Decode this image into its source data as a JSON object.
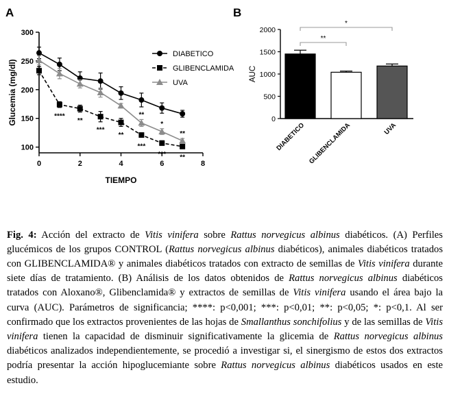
{
  "figure": {
    "panel_a_letter": "A",
    "panel_b_letter": "B"
  },
  "chart_data": [
    {
      "type": "line",
      "panel": "A",
      "xlabel": "TIEMPO",
      "ylabel": "Glucemia (mg/dl)",
      "xlim": [
        0,
        8
      ],
      "ylim": [
        90,
        300
      ],
      "xticks": [
        0,
        2,
        4,
        6,
        8
      ],
      "yticks": [
        100,
        150,
        200,
        250,
        300
      ],
      "legend_position": "top-right",
      "series": [
        {
          "name": "DIABETICO",
          "marker": "circle",
          "line_style": "solid",
          "color": "#000000",
          "x": [
            0,
            1,
            2,
            3,
            4,
            5,
            6,
            7
          ],
          "y": [
            264,
            244,
            220,
            215,
            194,
            182,
            168,
            158
          ],
          "err": [
            10,
            11,
            11,
            14,
            11,
            12,
            9,
            6
          ],
          "annotations": [
            "",
            "",
            "",
            "",
            "",
            "",
            "",
            ""
          ]
        },
        {
          "name": "GLIBENCLAMIDA",
          "marker": "square",
          "line_style": "dashed",
          "color": "#000000",
          "x": [
            0,
            1,
            2,
            3,
            4,
            5,
            6,
            7
          ],
          "y": [
            233,
            174,
            167,
            153,
            143,
            121,
            107,
            101
          ],
          "err": [
            7,
            5,
            6,
            9,
            7,
            4,
            4,
            3
          ],
          "annotations": [
            "",
            "****",
            "**",
            "***",
            "**",
            "***",
            "***",
            "**"
          ]
        },
        {
          "name": "UVA",
          "marker": "triangle",
          "line_style": "solid",
          "color": "#8c8c8c",
          "x": [
            0,
            1,
            2,
            3,
            4,
            5,
            6,
            7
          ],
          "y": [
            251,
            228,
            210,
            195,
            172,
            142,
            127,
            111
          ],
          "err": [
            8,
            9,
            7,
            8,
            4,
            6,
            5,
            4
          ],
          "annotations": [
            "",
            "",
            "",
            "",
            "",
            "**",
            "*",
            "**"
          ]
        }
      ]
    },
    {
      "type": "bar",
      "panel": "B",
      "ylabel": "AUC",
      "ylim": [
        0,
        2000
      ],
      "yticks": [
        0,
        500,
        1000,
        1500,
        2000
      ],
      "categories": [
        "DIABETICO",
        "GLIBENCLAMIDA",
        "UVA"
      ],
      "values": [
        1450,
        1040,
        1180
      ],
      "errors": [
        85,
        25,
        45
      ],
      "fills": [
        "#000000",
        "#ffffff",
        "#555555"
      ],
      "significance": [
        {
          "from": 0,
          "to": 1,
          "label": "**"
        },
        {
          "from": 0,
          "to": 2,
          "label": "*"
        }
      ]
    }
  ],
  "caption": {
    "parts": [
      {
        "t": "Fig. 4:",
        "s": "b"
      },
      {
        "t": " Acción del extracto de "
      },
      {
        "t": "Vitis vinifera",
        "s": "i"
      },
      {
        "t": " sobre "
      },
      {
        "t": "Rattus norvegicus albinus",
        "s": "i"
      },
      {
        "t": " diabéticos. (A) Perfiles glucémicos de los grupos CONTROL ("
      },
      {
        "t": "Rattus norvegicus albinus",
        "s": "i"
      },
      {
        "t": " diabéticos), animales diabéticos tratados con GLIBENCLAMIDA® y animales diabéticos tratados con extracto de semillas de "
      },
      {
        "t": "Vitis vinifera",
        "s": "i"
      },
      {
        "t": " durante siete días de tratamiento. (B) Análisis de los datos obtenidos de "
      },
      {
        "t": "Rattus norvegicus albinus",
        "s": "i"
      },
      {
        "t": " diabéticos tratados con Aloxano®, Glibenclamida® y extractos de semillas de "
      },
      {
        "t": "Vitis vinifera",
        "s": "i"
      },
      {
        "t": " usando el área bajo la curva (AUC). Parámetros de significancia; ****: p<0,001; ***: p<0,01; **: p<0,05; *: p<0,1. Al ser confirmado que los extractos provenientes de las hojas de "
      },
      {
        "t": "Smallanthus sonchifolius",
        "s": "i"
      },
      {
        "t": " y de las semillas de "
      },
      {
        "t": "Vitis vinifera",
        "s": "i"
      },
      {
        "t": " tienen la capacidad de disminuir significativamente la glicemia de "
      },
      {
        "t": "Rattus norvegicus albinus",
        "s": "i"
      },
      {
        "t": " diabéticos analizados independientemente, se procedió a investigar si, el sinergismo de estos dos extractos podría presentar la acción hipoglucemiante sobre "
      },
      {
        "t": "Rattus norvegicus albinus",
        "s": "i"
      },
      {
        "t": " diabéticos usados en este estudio."
      }
    ]
  }
}
